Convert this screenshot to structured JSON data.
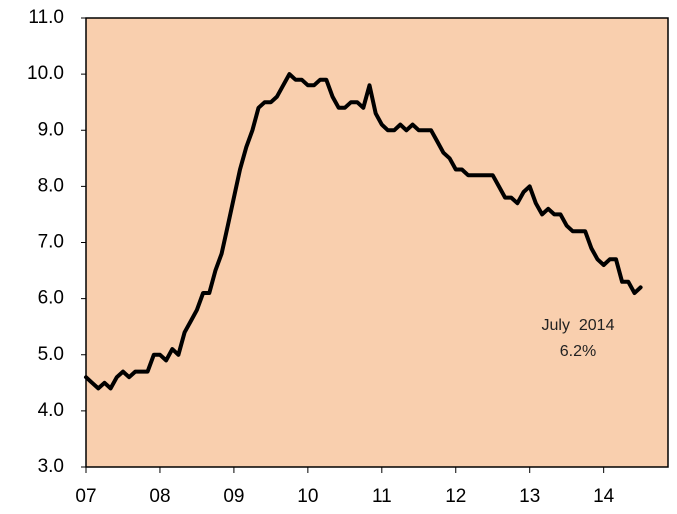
{
  "chart_data": {
    "type": "line",
    "x": [
      7.0,
      7.083,
      7.167,
      7.25,
      7.333,
      7.417,
      7.5,
      7.583,
      7.667,
      7.75,
      7.833,
      7.917,
      8.0,
      8.083,
      8.167,
      8.25,
      8.333,
      8.417,
      8.5,
      8.583,
      8.667,
      8.75,
      8.833,
      8.917,
      9.0,
      9.083,
      9.167,
      9.25,
      9.333,
      9.417,
      9.5,
      9.583,
      9.667,
      9.75,
      9.833,
      9.917,
      10.0,
      10.083,
      10.167,
      10.25,
      10.333,
      10.417,
      10.5,
      10.583,
      10.667,
      10.75,
      10.833,
      10.917,
      11.0,
      11.083,
      11.167,
      11.25,
      11.333,
      11.417,
      11.5,
      11.583,
      11.667,
      11.75,
      11.833,
      11.917,
      12.0,
      12.083,
      12.167,
      12.25,
      12.333,
      12.417,
      12.5,
      12.583,
      12.667,
      12.75,
      12.833,
      12.917,
      13.0,
      13.083,
      13.167,
      13.25,
      13.333,
      13.417,
      13.5,
      13.583,
      13.667,
      13.75,
      13.833,
      13.917,
      14.0,
      14.083,
      14.167,
      14.25,
      14.333,
      14.417,
      14.5
    ],
    "series": [
      {
        "color": "#000000",
        "values": [
          4.6,
          4.5,
          4.4,
          4.5,
          4.4,
          4.6,
          4.7,
          4.6,
          4.7,
          4.7,
          4.7,
          5.0,
          5.0,
          4.9,
          5.1,
          5.0,
          5.4,
          5.6,
          5.8,
          6.1,
          6.1,
          6.5,
          6.8,
          7.3,
          7.8,
          8.3,
          8.7,
          9.0,
          9.4,
          9.5,
          9.5,
          9.6,
          9.8,
          10.0,
          9.9,
          9.9,
          9.8,
          9.8,
          9.9,
          9.9,
          9.6,
          9.4,
          9.4,
          9.5,
          9.5,
          9.4,
          9.8,
          9.3,
          9.1,
          9.0,
          9.0,
          9.1,
          9.0,
          9.1,
          9.0,
          9.0,
          9.0,
          8.8,
          8.6,
          8.5,
          8.3,
          8.3,
          8.2,
          8.2,
          8.2,
          8.2,
          8.2,
          8.0,
          7.8,
          7.8,
          7.7,
          7.9,
          8.0,
          7.7,
          7.5,
          7.6,
          7.5,
          7.5,
          7.3,
          7.2,
          7.2,
          7.2,
          6.9,
          6.7,
          6.6,
          6.7,
          6.7,
          6.3,
          6.3,
          6.1,
          6.2
        ]
      }
    ],
    "xlim": [
      7,
      14.87
    ],
    "xticks": [
      {
        "value": 7,
        "label": "07"
      },
      {
        "value": 8,
        "label": "08"
      },
      {
        "value": 9,
        "label": "09"
      },
      {
        "value": 10,
        "label": "10"
      },
      {
        "value": 11,
        "label": "11"
      },
      {
        "value": 12,
        "label": "12"
      },
      {
        "value": 13,
        "label": "13"
      },
      {
        "value": 14,
        "label": "14"
      }
    ],
    "ylim": [
      3,
      11
    ],
    "yticks": [
      {
        "value": 3,
        "label": "3.0"
      },
      {
        "value": 4,
        "label": "4.0"
      },
      {
        "value": 5,
        "label": "5.0"
      },
      {
        "value": 6,
        "label": "6.0"
      },
      {
        "value": 7,
        "label": "7.0"
      },
      {
        "value": 8,
        "label": "8.0"
      },
      {
        "value": 9,
        "label": "9.0"
      },
      {
        "value": 10,
        "label": "10.0"
      },
      {
        "value": 11,
        "label": "11.0"
      }
    ],
    "background": "#f9cfae",
    "annotations": [
      "July  2014",
      "6.2%"
    ]
  }
}
